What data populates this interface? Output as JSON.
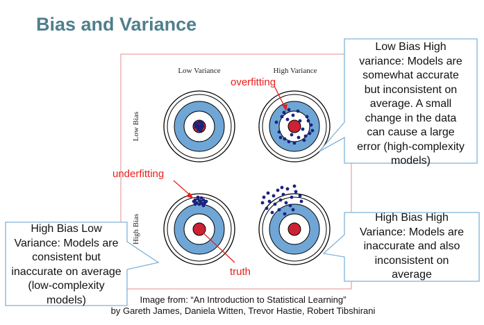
{
  "title": "Bias and Variance",
  "board": {
    "col_labels": [
      "Low Variance",
      "High Variance"
    ],
    "row_labels": [
      "Low Bias",
      "High Bias"
    ]
  },
  "annotations": {
    "overfitting": "overfitting",
    "underfitting": "underfitting",
    "truth": "truth"
  },
  "callouts": {
    "low_bias_high_variance": [
      "Low Bias High",
      "variance: Models are",
      "somewhat accurate",
      "but inconsistent on",
      "average. A small",
      "change in the data",
      "can cause a large",
      "error (high-complexity",
      "models)"
    ],
    "high_bias_low_variance": [
      "High Bias Low",
      "Variance: Models are",
      "consistent but",
      "inaccurate on average",
      "(low-complexity",
      "models)"
    ],
    "high_bias_high_variance": [
      "High Bias High",
      "Variance: Models are",
      "inaccurate and also",
      "inconsistent on",
      "average"
    ]
  },
  "caption": {
    "line1": "Image from: “An Introduction to Statistical Learning”",
    "line2": "by Gareth James, Daniela Witten, Trevor Hastie, Robert Tibshirani"
  },
  "colors": {
    "title": "#4f7f8c",
    "ring_blue": "#6fa6d6",
    "bullseye": "#cc2233",
    "dots": "#1a237e",
    "annotation": "#e8201c",
    "frame": "#e8a0a0",
    "callout_border": "#7fb2d8"
  }
}
